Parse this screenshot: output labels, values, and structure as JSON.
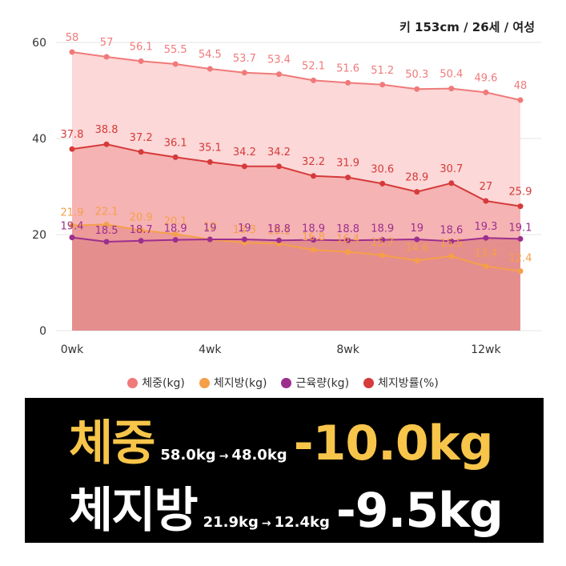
{
  "profile": "키 153cm / 26세 / 여성",
  "colors": {
    "weight": "#f07a7a",
    "fat_mass": "#f5a049",
    "muscle": "#9c2f8e",
    "fat_pct": "#d63a3a",
    "banner_bg": "#000000",
    "highlight": "#f7c54a"
  },
  "chart_data": {
    "type": "area",
    "x": [
      0,
      1,
      2,
      3,
      4,
      5,
      6,
      7,
      8,
      9,
      10,
      11,
      12,
      13
    ],
    "xticks": [
      0,
      4,
      8,
      12
    ],
    "xtick_labels": [
      "0wk",
      "4wk",
      "8wk",
      "12wk"
    ],
    "yticks": [
      0,
      20,
      40,
      60
    ],
    "ylim": [
      0,
      60
    ],
    "grid": true,
    "legend_position": "bottom",
    "series": [
      {
        "name": "체중(kg)",
        "key": "weight",
        "values": [
          58,
          57,
          56.1,
          55.5,
          54.5,
          53.7,
          53.4,
          52.1,
          51.6,
          51.2,
          50.3,
          50.4,
          49.6,
          48
        ]
      },
      {
        "name": "체지방(kg)",
        "key": "fat_mass",
        "values": [
          21.9,
          22.1,
          20.9,
          20.1,
          19,
          18.3,
          18.1,
          16.8,
          16.4,
          15.7,
          14.6,
          15.5,
          13.4,
          12.4
        ]
      },
      {
        "name": "근육량(kg)",
        "key": "muscle",
        "values": [
          19.4,
          18.5,
          18.7,
          18.9,
          19,
          19,
          18.8,
          18.9,
          18.8,
          18.9,
          19,
          18.6,
          19.3,
          19.1
        ]
      },
      {
        "name": "체지방률(%)",
        "key": "fat_pct",
        "values": [
          37.8,
          38.8,
          37.2,
          36.1,
          35.1,
          34.2,
          34.2,
          32.2,
          31.9,
          30.6,
          28.9,
          30.7,
          27,
          25.9
        ]
      }
    ]
  },
  "legend": [
    {
      "label": "체중(kg)",
      "key": "weight"
    },
    {
      "label": "체지방(kg)",
      "key": "fat_mass"
    },
    {
      "label": "근육량(kg)",
      "key": "muscle"
    },
    {
      "label": "체지방률(%)",
      "key": "fat_pct"
    }
  ],
  "summary": {
    "weight": {
      "label": "체중",
      "from": "58.0kg",
      "arrow": "→",
      "to": "48.0kg",
      "delta": "-10.0kg"
    },
    "fat": {
      "label": "체지방",
      "from": "21.9kg",
      "arrow": "→",
      "to": "12.4kg",
      "delta": "-9.5kg"
    }
  }
}
